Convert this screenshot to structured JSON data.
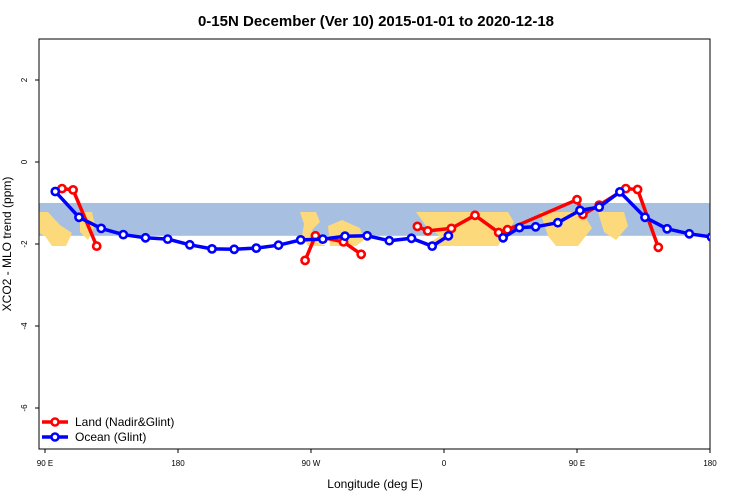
{
  "chart_data": {
    "type": "line",
    "title": "0-15N December (Ver 10)   2015-01-01 to 2020-12-18",
    "xlabel": "Longitude (deg E)",
    "ylabel": "XCO2 - MLO trend (ppm)",
    "xlim": [
      90,
      540
    ],
    "ylim": [
      -7,
      3
    ],
    "xticks": [
      {
        "value": 90,
        "label": "90 E"
      },
      {
        "value": 180,
        "label": "180"
      },
      {
        "value": 270,
        "label": "90 W"
      },
      {
        "value": 360,
        "label": "0"
      },
      {
        "value": 450,
        "label": "90 E"
      },
      {
        "value": 540,
        "label": "180"
      }
    ],
    "yticks": [
      {
        "value": 2,
        "label": "2"
      },
      {
        "value": 0,
        "label": "0"
      },
      {
        "value": -2,
        "label": "-2"
      },
      {
        "value": -4,
        "label": "-4"
      },
      {
        "value": -6,
        "label": "-6"
      }
    ],
    "background_band": {
      "ymin": -1.8,
      "ymax": -1.0,
      "color": "#a7bfe0",
      "land_color": "#fcd97a"
    },
    "legend": "bottom-left",
    "series": [
      {
        "name": "Land (Nadir&Glint)",
        "color": "#ff0000",
        "segments": [
          [
            [
              101.5,
              -0.65
            ],
            [
              109,
              -0.68
            ],
            [
              125,
              -2.05
            ]
          ],
          [
            [
              266,
              -2.4
            ],
            [
              273,
              -1.8
            ],
            [
              292,
              -1.95
            ],
            [
              304,
              -2.25
            ]
          ],
          [
            [
              342,
              -1.57
            ],
            [
              349,
              -1.68
            ],
            [
              365,
              -1.62
            ],
            [
              381,
              -1.3
            ],
            [
              397,
              -1.72
            ],
            [
              403,
              -1.65
            ],
            [
              450,
              -0.92
            ],
            [
              454,
              -1.28
            ],
            [
              465,
              -1.05
            ],
            [
              483,
              -0.65
            ],
            [
              491,
              -0.67
            ],
            [
              505,
              -2.08
            ]
          ]
        ]
      },
      {
        "name": "Ocean (Glint)",
        "color": "#0000ff",
        "segments": [
          [
            [
              97,
              -0.72
            ],
            [
              113,
              -1.35
            ],
            [
              128,
              -1.62
            ],
            [
              143,
              -1.77
            ],
            [
              158,
              -1.85
            ],
            [
              173,
              -1.88
            ],
            [
              188,
              -2.02
            ],
            [
              203,
              -2.12
            ],
            [
              218,
              -2.13
            ],
            [
              233,
              -2.1
            ],
            [
              248,
              -2.03
            ],
            [
              263,
              -1.9
            ],
            [
              278,
              -1.88
            ],
            [
              293,
              -1.81
            ],
            [
              308,
              -1.8
            ],
            [
              323,
              -1.92
            ],
            [
              338,
              -1.86
            ],
            [
              352,
              -2.05
            ],
            [
              363,
              -1.8
            ]
          ],
          [
            [
              400,
              -1.85
            ],
            [
              411,
              -1.6
            ],
            [
              422,
              -1.58
            ],
            [
              437,
              -1.48
            ],
            [
              452,
              -1.18
            ],
            [
              465,
              -1.1
            ],
            [
              479,
              -0.73
            ],
            [
              496,
              -1.35
            ],
            [
              511,
              -1.63
            ],
            [
              526,
              -1.75
            ],
            [
              541,
              -1.83
            ],
            [
              556,
              -1.88
            ]
          ]
        ]
      }
    ]
  }
}
